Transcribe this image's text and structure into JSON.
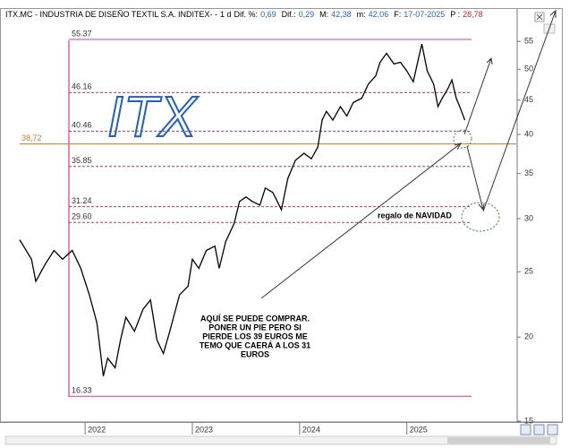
{
  "header": {
    "symbol": "ITX.MC - INDUSTRIA DE DISEÑO TEXTIL S.A. INDITEX- -",
    "period": "1 d",
    "items": [
      {
        "label": "Dif. %:",
        "value": "0,69"
      },
      {
        "label": "Dif.:",
        "value": "0,29"
      },
      {
        "label": "M:",
        "value": "42,38"
      },
      {
        "label": "m:",
        "value": "42,06"
      },
      {
        "label": "F:",
        "value": "17-07-2025"
      },
      {
        "label": "P :",
        "value": "28,78"
      }
    ]
  },
  "chart_data": {
    "type": "line",
    "color": "#000000",
    "log_scale": true,
    "grid": false,
    "x": [
      2021.39,
      2021.5,
      2021.54,
      2021.63,
      2021.71,
      2021.79,
      2021.88,
      2021.96,
      2022.04,
      2022.11,
      2022.17,
      2022.21,
      2022.28,
      2022.33,
      2022.38,
      2022.46,
      2022.54,
      2022.61,
      2022.67,
      2022.73,
      2022.79,
      2022.88,
      2022.96,
      2023.0,
      2023.06,
      2023.13,
      2023.21,
      2023.25,
      2023.31,
      2023.39,
      2023.44,
      2023.5,
      2023.56,
      2023.63,
      2023.68,
      2023.75,
      2023.83,
      2023.89,
      2023.96,
      2024.04,
      2024.11,
      2024.17,
      2024.21,
      2024.25,
      2024.31,
      2024.38,
      2024.44,
      2024.5,
      2024.58,
      2024.64,
      2024.71,
      2024.75,
      2024.81,
      2024.88,
      2024.94,
      2025.0,
      2025.06,
      2025.11,
      2025.14,
      2025.19,
      2025.25,
      2025.29,
      2025.33,
      2025.38,
      2025.42,
      2025.46,
      2025.5,
      2025.54
    ],
    "values": [
      27.9,
      26.1,
      24.2,
      25.7,
      26.9,
      26.1,
      26.9,
      25.3,
      23.1,
      21.0,
      17.5,
      18.6,
      18.0,
      19.8,
      21.4,
      20.4,
      22.0,
      22.7,
      19.8,
      18.9,
      20.4,
      23.1,
      23.8,
      26.1,
      25.3,
      26.9,
      27.3,
      25.3,
      27.7,
      29.5,
      31.8,
      32.3,
      31.8,
      31.4,
      33.3,
      32.8,
      30.9,
      34.4,
      36.6,
      37.5,
      36.8,
      38.3,
      42.0,
      43.3,
      42.0,
      44.0,
      42.6,
      44.6,
      45.3,
      47.5,
      48.9,
      51.2,
      52.8,
      50.9,
      51.2,
      49.7,
      47.9,
      52.0,
      54.5,
      49.7,
      47.5,
      44.0,
      45.3,
      46.7,
      48.2,
      45.3,
      43.7,
      42.0
    ],
    "xlim": [
      2021.39,
      2026.02
    ],
    "xticks": [
      2022,
      2023,
      2024,
      2025
    ],
    "ylim": [
      15,
      60.7
    ],
    "yticks": [
      55,
      50,
      45,
      40,
      35,
      30,
      25,
      20,
      15
    ],
    "levels": [
      {
        "value": 55.37,
        "label": "55.37",
        "color": "#e0379b",
        "style": "solid"
      },
      {
        "value": 46.16,
        "label": "46.16",
        "color": "#c0306a",
        "style": "dashed"
      },
      {
        "value": 40.46,
        "label": "40.46",
        "color": "#c0306a",
        "style": "dashed"
      },
      {
        "value": 38.72,
        "label": "38,72",
        "color": "#d07a30",
        "style": "solid"
      },
      {
        "value": 35.85,
        "label": "35.85",
        "color": "#c0306a",
        "style": "dashed"
      },
      {
        "value": 31.24,
        "label": "31.24",
        "color": "#c0306a",
        "style": "dashed"
      },
      {
        "value": 29.6,
        "label": "29.60",
        "color": "#c0306a",
        "style": "dashed"
      },
      {
        "value": 16.33,
        "label": "16.33",
        "color": "#e0379b",
        "style": "solid"
      }
    ],
    "annotations": {
      "handwritten": "ITX",
      "note_1": "regalo de NAVIDAD",
      "note_2": [
        "AQUÍ SE PUEDE COMPRAR.",
        "PONER UN PIE PERO SI",
        "PIERDE LOS 39 EUROS ME",
        "TEMO QUE CAERÁ A LOS 31",
        "EUROS"
      ]
    }
  }
}
